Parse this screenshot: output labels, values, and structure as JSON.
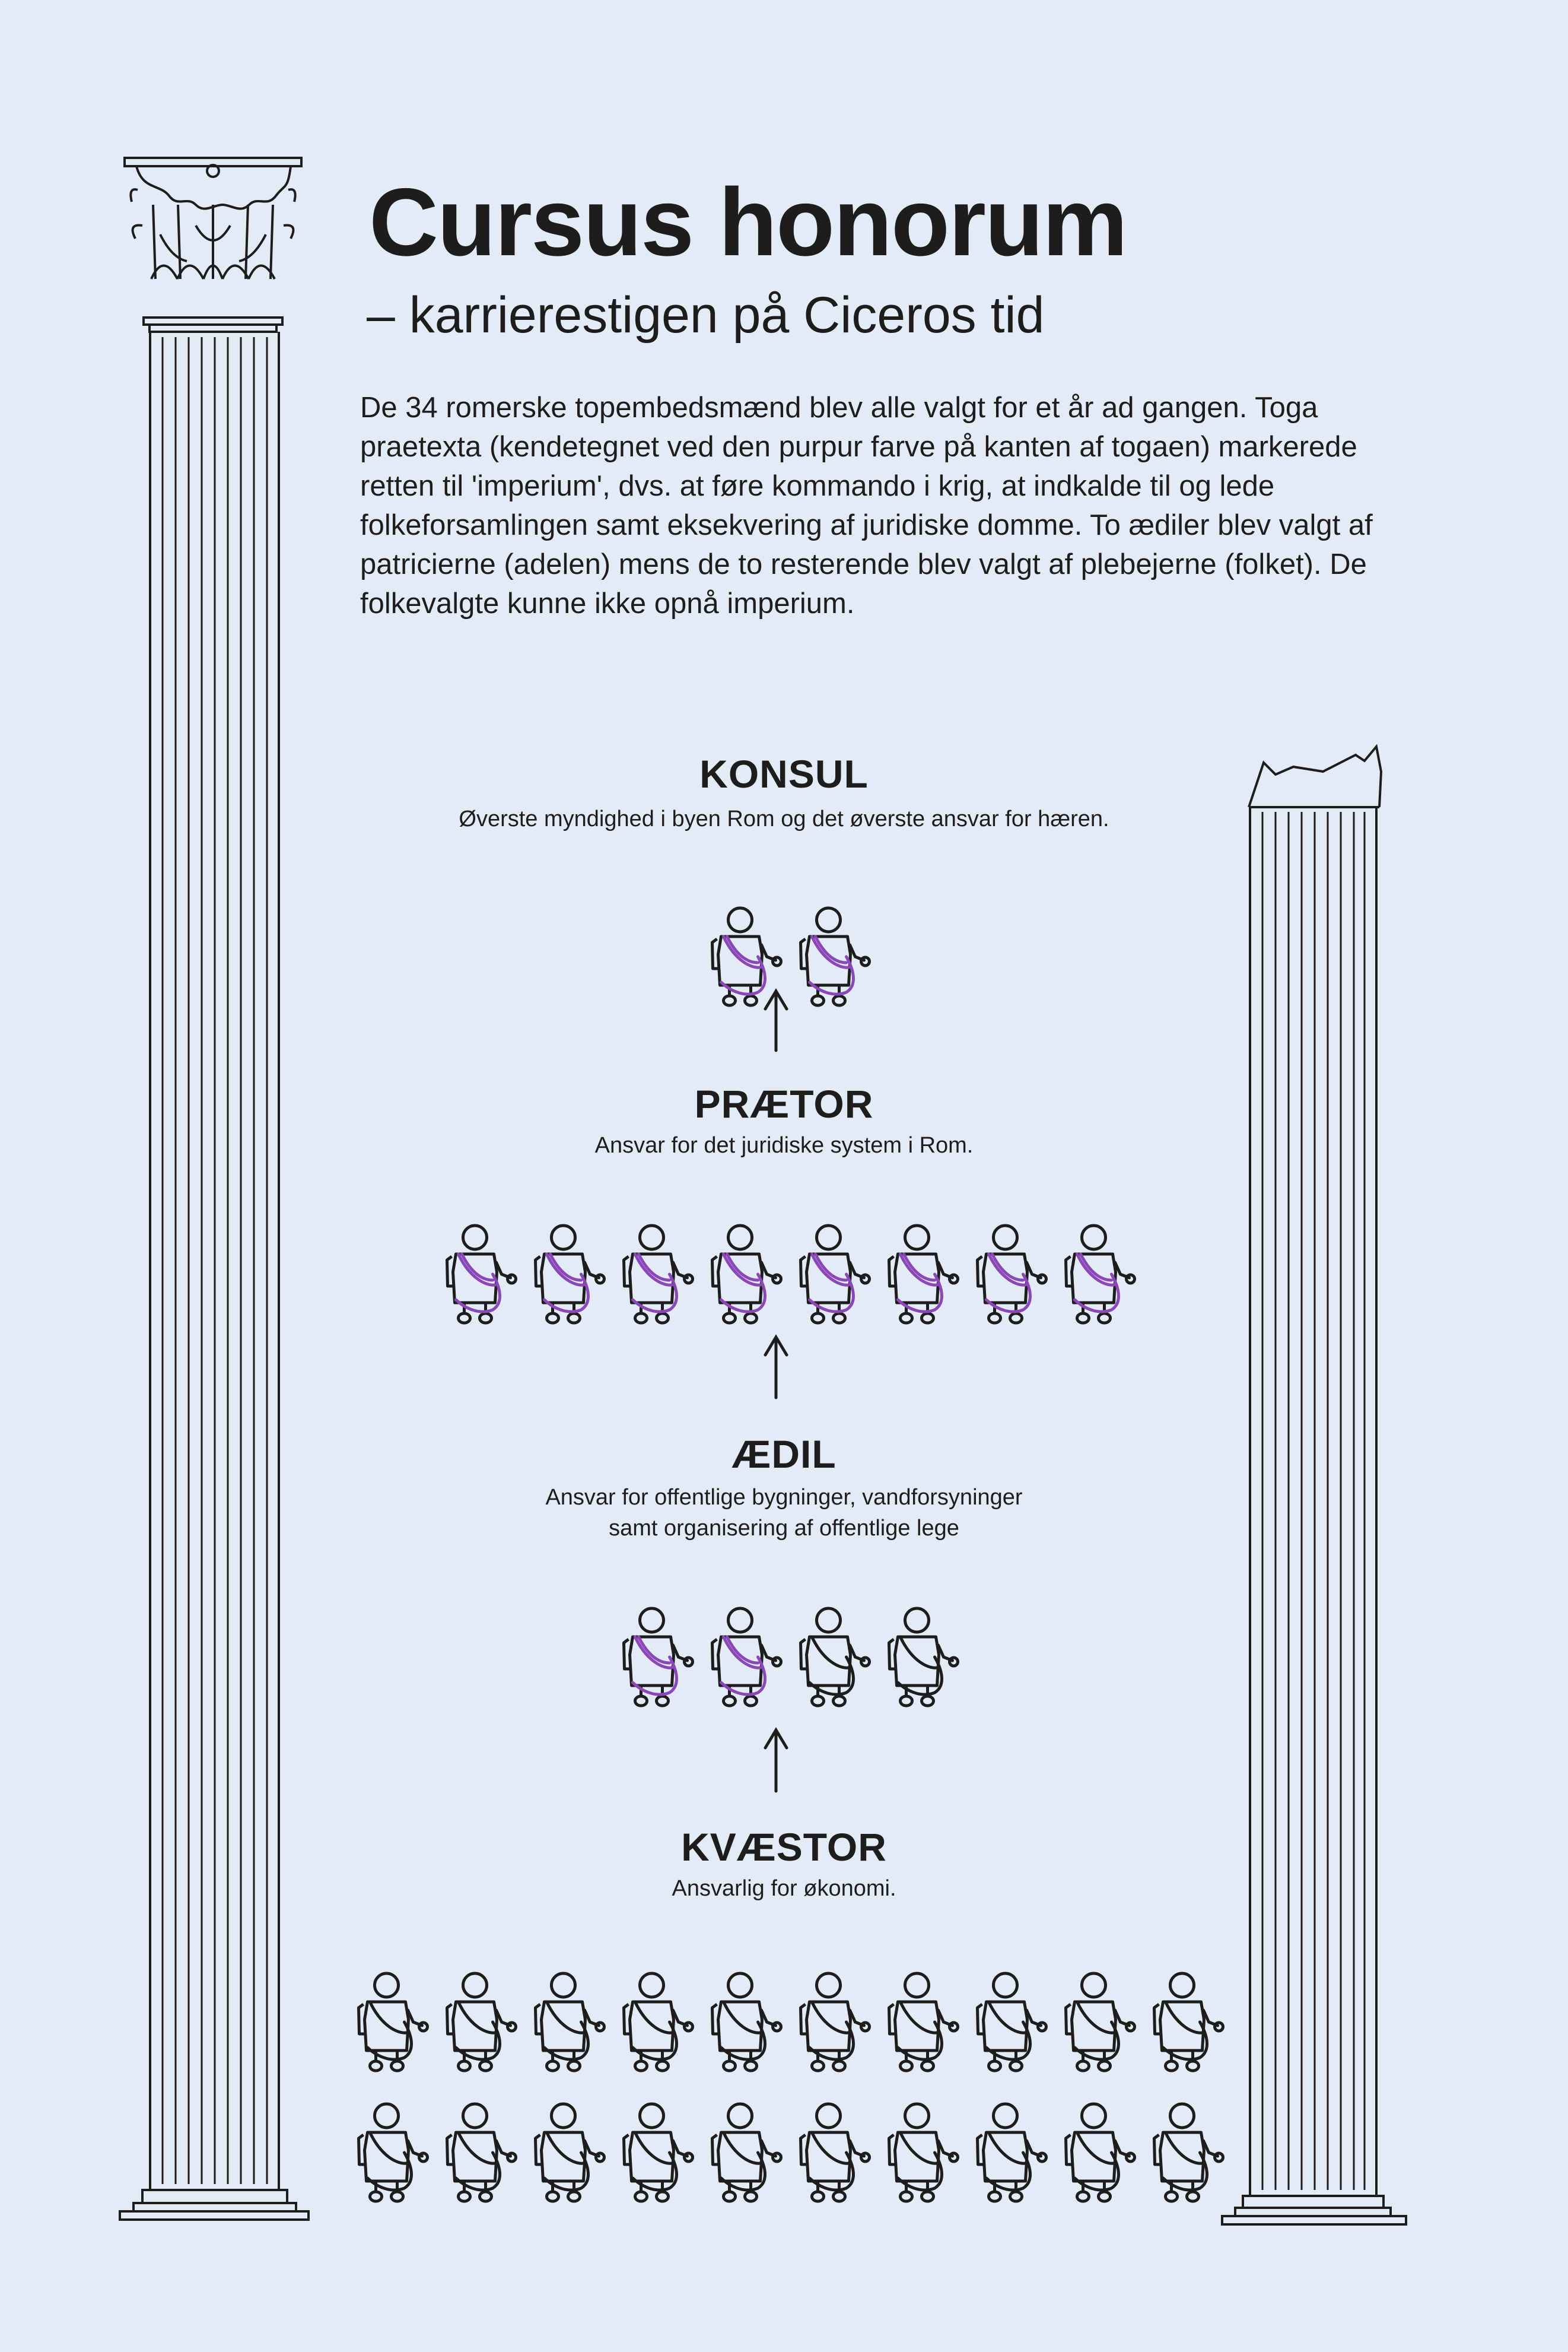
{
  "header": {
    "title": "Cursus honorum",
    "subtitle": "– karrierestigen på Ciceros tid"
  },
  "intro_text": "De 34 romerske topembedsmænd blev alle valgt for et år ad gangen. Toga praetexta (kendetegnet ved den purpur farve på kanten af togaen) markerede retten til 'imperium', dvs. at føre kommando i krig, at indkalde til og lede folkeforsamlingen samt eksekvering af juridiske domme. To ædiler blev valgt af patricierne (adelen) mens de to resterende blev valgt af plebejerne (folket). De folkevalgte kunne ikke opnå imperium.",
  "ranks": [
    {
      "name": "KONSUL",
      "description": "Øverste myndighed i byen Rom og det øverste ansvar for hæren.",
      "count": 2,
      "imperium": 2
    },
    {
      "name": "PRÆTOR",
      "description": "Ansvar for det juridiske system i Rom.",
      "count": 8,
      "imperium": 8
    },
    {
      "name": "ÆDIL",
      "description": "Ansvar for offentlige bygninger, vandforsyninger\nsamt organisering af offentlige lege",
      "count": 4,
      "imperium": 2
    },
    {
      "name": "KVÆSTOR",
      "description": "Ansvarlig for økonomi.",
      "count": 20,
      "imperium": 0
    }
  ],
  "colors": {
    "background": "#e3ecf6",
    "ink": "#1d1d1d",
    "purple_praetexta": "#8b47b8"
  },
  "icons": [
    "roman-figure-icon",
    "up-arrow-icon",
    "corinthian-column-icon",
    "broken-column-icon"
  ]
}
